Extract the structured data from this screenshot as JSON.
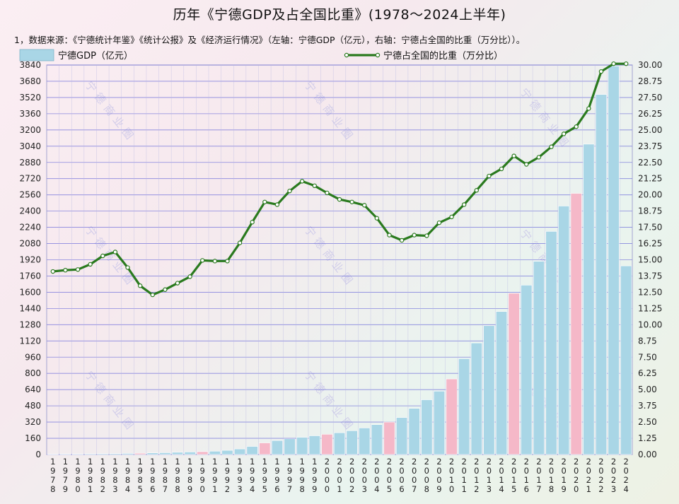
{
  "title": "历年《宁德GDP及占全国比重》(1978～2024上半年)",
  "note": "1，数据来源：《宁德统计年鉴》《统计公报》及《经济运行情况》（左轴：宁德GDP（亿元），右轴：宁德占全国的比重（万分比））。",
  "watermark": "宁德商业圈",
  "colors": {
    "bar": "#a9d6e6",
    "bar_highlight": "#f5b8c8",
    "line": "#2a7a1e",
    "marker_fill": "#ffffff",
    "grid": "#6464d8"
  },
  "chart_data": {
    "type": "bar+line",
    "title": "历年《宁德GDP及占全国比重》(1978～2024上半年)",
    "categories": [
      "1978",
      "1979",
      "1980",
      "1981",
      "1982",
      "1983",
      "1984",
      "1985",
      "1986",
      "1987",
      "1988",
      "1989",
      "1990",
      "1991",
      "1992",
      "1993",
      "1994",
      "1995",
      "1996",
      "1997",
      "1998",
      "1999",
      "2000",
      "2001",
      "2002",
      "2003",
      "2004",
      "2005",
      "2006",
      "2007",
      "2008",
      "2009",
      "2010",
      "2011",
      "2012",
      "2013",
      "2014",
      "2015",
      "2016",
      "2017",
      "2018",
      "2019",
      "2020",
      "2021",
      "2022",
      "2023",
      "2024"
    ],
    "series": [
      {
        "name": "宁德GDP（亿元）",
        "type": "bar",
        "axis": "left",
        "values": [
          5,
          6,
          6,
          7,
          8,
          9,
          11,
          13,
          16,
          18,
          22,
          25,
          28,
          33,
          41,
          55,
          80,
          115,
          138,
          155,
          170,
          185,
          200,
          215,
          235,
          262,
          295,
          320,
          365,
          455,
          540,
          625,
          745,
          945,
          1100,
          1270,
          1410,
          1590,
          1670,
          1905,
          2200,
          2450,
          2575,
          3060,
          3550,
          3830,
          1860
        ],
        "highlight_categories": [
          "1985",
          "1990",
          "1995",
          "2000",
          "2005",
          "2010",
          "2015",
          "2020"
        ]
      },
      {
        "name": "宁德占全国的比重（万分比）",
        "type": "line",
        "axis": "right",
        "values": [
          14.1,
          14.2,
          14.25,
          14.65,
          15.3,
          15.6,
          14.4,
          13.0,
          12.3,
          12.7,
          13.2,
          13.7,
          14.95,
          14.9,
          14.9,
          16.3,
          17.9,
          19.45,
          19.25,
          20.3,
          21.05,
          20.7,
          20.15,
          19.65,
          19.45,
          19.2,
          18.2,
          16.9,
          16.5,
          16.9,
          16.85,
          17.85,
          18.3,
          19.25,
          20.35,
          21.45,
          22.0,
          23.0,
          22.35,
          22.9,
          23.7,
          24.7,
          25.25,
          26.65,
          29.5,
          30.1,
          30.1
        ]
      }
    ],
    "y_left": {
      "min": 0,
      "max": 3840,
      "ticks": [
        "0",
        "160",
        "320",
        "480",
        "640",
        "800",
        "960",
        "1120",
        "1280",
        "1440",
        "1600",
        "1760",
        "1920",
        "2080",
        "2240",
        "2400",
        "2560",
        "2720",
        "2880",
        "3040",
        "3200",
        "3360",
        "3520",
        "3680",
        "3840"
      ]
    },
    "y_right": {
      "min": 0,
      "max": 30,
      "ticks": [
        "0.00",
        "1.25",
        "2.50",
        "3.75",
        "5.00",
        "6.25",
        "7.50",
        "8.75",
        "10.00",
        "11.25",
        "12.50",
        "13.75",
        "15.00",
        "16.25",
        "17.50",
        "18.75",
        "20.00",
        "21.25",
        "22.50",
        "23.75",
        "25.00",
        "26.25",
        "27.50",
        "28.75",
        "30.00"
      ]
    },
    "grid": true,
    "legend": "top"
  }
}
